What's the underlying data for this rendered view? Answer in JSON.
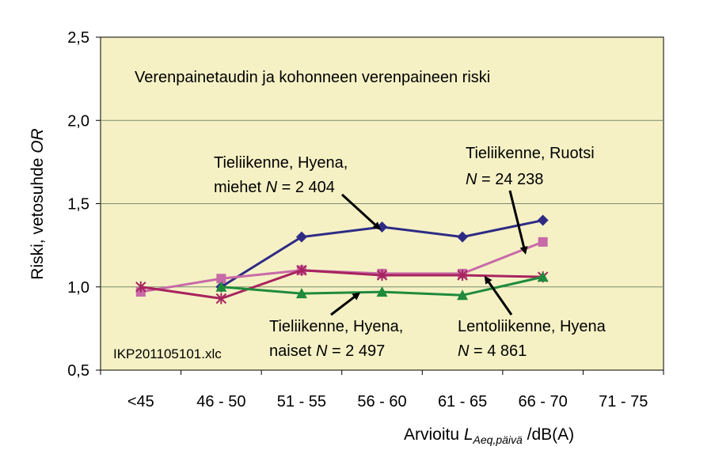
{
  "chart_data": {
    "type": "line",
    "title": "Verenpainetaudin ja kohonneen verenpaineen riski",
    "file_label": "IKP201105101.xlc",
    "categories": [
      "<45",
      "46 - 50",
      "51 - 55",
      "56 - 60",
      "61 - 65",
      "66 - 70",
      "71 - 75"
    ],
    "y_ticks": [
      "0,5",
      "1,0",
      "1,5",
      "2,0",
      "2,5"
    ],
    "ylim": [
      0.5,
      2.5
    ],
    "grid": true,
    "ylabel": {
      "main": "Riski, vetosuhde ",
      "italic": "OR"
    },
    "xlabel": {
      "prefix": "Arvioitu ",
      "L": "L",
      "sub": "Aeq,päivä",
      "suffix": " /dB(A)"
    },
    "colors": {
      "plot_bg": "#f5f1c5",
      "grid": "#7a8a6a"
    },
    "series": [
      {
        "name": "Tieliikenne, Hyena, miehet",
        "color": "#2e2b85",
        "marker": "diamond",
        "values": [
          null,
          1.0,
          1.3,
          1.36,
          1.3,
          1.4,
          null
        ]
      },
      {
        "name": "Tieliikenne, Ruotsi",
        "color": "#c86aa8",
        "marker": "square",
        "values": [
          0.97,
          1.05,
          1.1,
          1.08,
          1.08,
          1.27,
          null
        ]
      },
      {
        "name": "Lentoliikenne, Hyena",
        "color": "#a8245e",
        "marker": "asterisk",
        "values": [
          1.0,
          0.93,
          1.1,
          1.07,
          1.07,
          1.06,
          null
        ]
      },
      {
        "name": "Tieliikenne, Hyena, naiset",
        "color": "#1f8a3c",
        "marker": "triangle",
        "values": [
          null,
          1.0,
          0.96,
          0.97,
          0.95,
          1.06,
          null
        ]
      }
    ],
    "annotations": {
      "miehet": {
        "line1": "Tieliikenne, Hyena,",
        "line2_pre": "miehet ",
        "N": "N",
        "line2_post": " = 2 404"
      },
      "ruotsi": {
        "line1": "Tieliikenne, Ruotsi",
        "N": "N",
        "line2_post": " = 24 238"
      },
      "naiset": {
        "line1": "Tieliikenne, Hyena,",
        "line2_pre": "naiset ",
        "N": "N",
        "line2_post": " = 2 497"
      },
      "lento": {
        "line1": "Lentoliikenne, Hyena",
        "N": "N",
        "line2_post": " = 4 861"
      }
    }
  }
}
